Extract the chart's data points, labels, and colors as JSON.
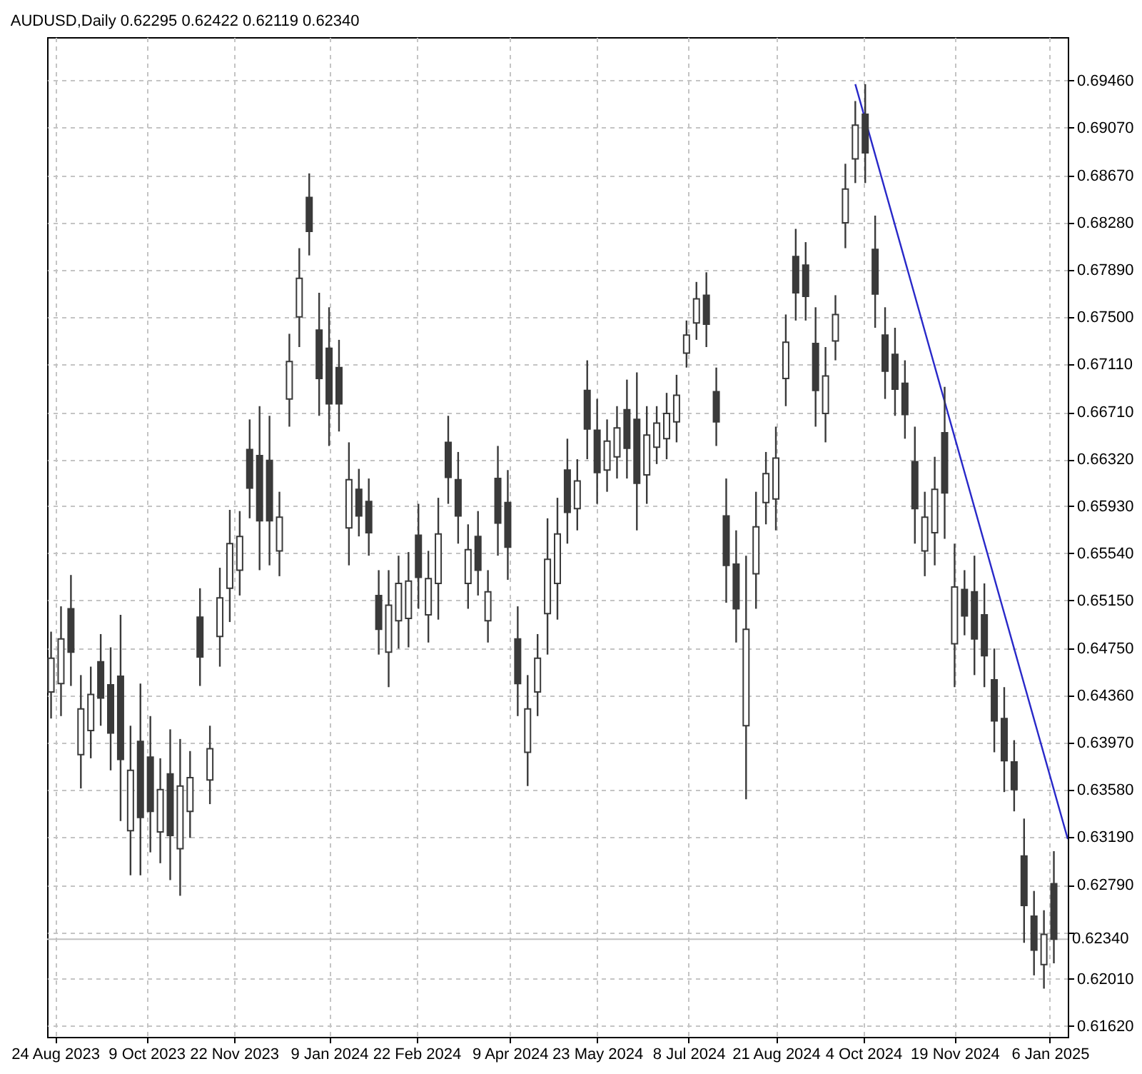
{
  "chart_data": {
    "type": "candlestick",
    "title": "AUDUSD,Daily  0.62295 0.62422 0.62119 0.62340",
    "grid": true,
    "xlim": [
      "2023-08-20",
      "2025-01-15"
    ],
    "xticks": [
      {
        "value": "2023-08-24",
        "label": "24 Aug 2023"
      },
      {
        "value": "2023-10-09",
        "label": "9 Oct 2023"
      },
      {
        "value": "2023-11-22",
        "label": "22 Nov 2023"
      },
      {
        "value": "2024-01-09",
        "label": "9 Jan 2024"
      },
      {
        "value": "2024-02-22",
        "label": "22 Feb 2024"
      },
      {
        "value": "2024-04-09",
        "label": "9 Apr 2024"
      },
      {
        "value": "2024-05-23",
        "label": "23 May 2024"
      },
      {
        "value": "2024-07-08",
        "label": "8 Jul 2024"
      },
      {
        "value": "2024-08-21",
        "label": "21 Aug 2024"
      },
      {
        "value": "2024-10-04",
        "label": "4 Oct 2024"
      },
      {
        "value": "2024-11-19",
        "label": "19 Nov 2024"
      },
      {
        "value": "2025-01-06",
        "label": "6 Jan 2025"
      }
    ],
    "ylim": [
      0.6153,
      0.6982
    ],
    "yticks": [
      {
        "value": 0.6162,
        "label": "0.61620"
      },
      {
        "value": 0.6201,
        "label": "0.62010"
      },
      {
        "value": 0.624,
        "label": null
      },
      {
        "value": 0.6279,
        "label": "0.62790"
      },
      {
        "value": 0.6319,
        "label": "0.63190"
      },
      {
        "value": 0.6358,
        "label": "0.63580"
      },
      {
        "value": 0.6397,
        "label": "0.63970"
      },
      {
        "value": 0.6436,
        "label": "0.64360"
      },
      {
        "value": 0.6475,
        "label": "0.64750"
      },
      {
        "value": 0.6515,
        "label": "0.65150"
      },
      {
        "value": 0.6554,
        "label": "0.65540"
      },
      {
        "value": 0.6593,
        "label": "0.65930"
      },
      {
        "value": 0.6632,
        "label": "0.66320"
      },
      {
        "value": 0.6671,
        "label": "0.66710"
      },
      {
        "value": 0.6711,
        "label": "0.67110"
      },
      {
        "value": 0.675,
        "label": "0.67500"
      },
      {
        "value": 0.6789,
        "label": "0.67890"
      },
      {
        "value": 0.6828,
        "label": "0.68280"
      },
      {
        "value": 0.6867,
        "label": "0.68670"
      },
      {
        "value": 0.6907,
        "label": "0.69070"
      },
      {
        "value": 0.6946,
        "label": "0.69460"
      }
    ],
    "ref_lines": [
      {
        "axis": "y",
        "value": 0.6234,
        "label": "0.62340",
        "color": "#c0c0c0"
      }
    ],
    "series": [
      {
        "type": "line",
        "color": "#2828c8",
        "x": [
          "2024-09-30",
          "2025-01-15"
        ],
        "values": [
          0.6943,
          0.6317
        ]
      },
      {
        "color": "#3a3a3a",
        "x": [
          "2023-08-22",
          "2023-08-27",
          "2023-09-01",
          "2023-09-06",
          "2023-09-11",
          "2023-09-16",
          "2023-09-21",
          "2023-09-26",
          "2023-10-01",
          "2023-10-06",
          "2023-10-11",
          "2023-10-16",
          "2023-10-21",
          "2023-10-26",
          "2023-10-31",
          "2023-11-05",
          "2023-11-10",
          "2023-11-15",
          "2023-11-20",
          "2023-11-25",
          "2023-11-30",
          "2023-12-05",
          "2023-12-10",
          "2023-12-15",
          "2023-12-20",
          "2023-12-25",
          "2023-12-30",
          "2024-01-04",
          "2024-01-09",
          "2024-01-14",
          "2024-01-19",
          "2024-01-24",
          "2024-01-29",
          "2024-02-03",
          "2024-02-08",
          "2024-02-13",
          "2024-02-18",
          "2024-02-23",
          "2024-02-28",
          "2024-03-04",
          "2024-03-09",
          "2024-03-14",
          "2024-03-19",
          "2024-03-24",
          "2024-03-29",
          "2024-04-03",
          "2024-04-08",
          "2024-04-13",
          "2024-04-18",
          "2024-04-23",
          "2024-04-28",
          "2024-05-03",
          "2024-05-08",
          "2024-05-13",
          "2024-05-18",
          "2024-05-23",
          "2024-05-28",
          "2024-06-02",
          "2024-06-07",
          "2024-06-12",
          "2024-06-17",
          "2024-06-22",
          "2024-06-27",
          "2024-07-02",
          "2024-07-07",
          "2024-07-12",
          "2024-07-17",
          "2024-07-22",
          "2024-07-27",
          "2024-08-01",
          "2024-08-06",
          "2024-08-11",
          "2024-08-16",
          "2024-08-21",
          "2024-08-26",
          "2024-08-31",
          "2024-09-05",
          "2024-09-10",
          "2024-09-15",
          "2024-09-20",
          "2024-09-25",
          "2024-09-30",
          "2024-10-05",
          "2024-10-10",
          "2024-10-15",
          "2024-10-20",
          "2024-10-25",
          "2024-10-30",
          "2024-11-04",
          "2024-11-09",
          "2024-11-14",
          "2024-11-19",
          "2024-11-24",
          "2024-11-29",
          "2024-12-04",
          "2024-12-09",
          "2024-12-14",
          "2024-12-19",
          "2024-12-24",
          "2024-12-29",
          "2025-01-03",
          "2025-01-08"
        ],
        "ohlc": [
          [
            0.6439,
            0.6489,
            0.6417,
            0.6467
          ],
          [
            0.6446,
            0.651,
            0.6419,
            0.6483
          ],
          [
            0.6508,
            0.6536,
            0.6444,
            0.6472
          ],
          [
            0.6387,
            0.6453,
            0.6359,
            0.6425
          ],
          [
            0.6407,
            0.646,
            0.6384,
            0.6437
          ],
          [
            0.6464,
            0.6487,
            0.6411,
            0.6434
          ],
          [
            0.6445,
            0.6476,
            0.6374,
            0.6405
          ],
          [
            0.6452,
            0.6503,
            0.6332,
            0.6383
          ],
          [
            0.6324,
            0.6411,
            0.6287,
            0.6374
          ],
          [
            0.6398,
            0.6446,
            0.6287,
            0.6335
          ],
          [
            0.6385,
            0.6419,
            0.6306,
            0.634
          ],
          [
            0.6323,
            0.6384,
            0.6297,
            0.6358
          ],
          [
            0.6371,
            0.6408,
            0.6283,
            0.632
          ],
          [
            0.6309,
            0.64,
            0.627,
            0.6361
          ],
          [
            0.634,
            0.639,
            0.6318,
            0.6368
          ],
          [
            0.6501,
            0.6525,
            0.6444,
            0.6468
          ],
          [
            0.6366,
            0.6411,
            0.6346,
            0.6392
          ],
          [
            0.6485,
            0.6542,
            0.646,
            0.6517
          ],
          [
            0.6525,
            0.659,
            0.6497,
            0.6562
          ],
          [
            0.654,
            0.6589,
            0.6519,
            0.6568
          ],
          [
            0.664,
            0.6665,
            0.6583,
            0.6608
          ],
          [
            0.6635,
            0.6676,
            0.654,
            0.6581
          ],
          [
            0.6631,
            0.6668,
            0.6544,
            0.6581
          ],
          [
            0.6556,
            0.6605,
            0.6535,
            0.6584
          ],
          [
            0.6682,
            0.6736,
            0.6659,
            0.6713
          ],
          [
            0.675,
            0.6807,
            0.6725,
            0.6782
          ],
          [
            0.6849,
            0.6869,
            0.6801,
            0.6821
          ],
          [
            0.6739,
            0.677,
            0.6668,
            0.6699
          ],
          [
            0.6724,
            0.6758,
            0.6643,
            0.6678
          ],
          [
            0.6708,
            0.6731,
            0.6655,
            0.6678
          ],
          [
            0.6575,
            0.6646,
            0.6544,
            0.6615
          ],
          [
            0.6607,
            0.6624,
            0.6568,
            0.6585
          ],
          [
            0.6597,
            0.6616,
            0.6552,
            0.6571
          ],
          [
            0.6519,
            0.654,
            0.647,
            0.6491
          ],
          [
            0.6472,
            0.654,
            0.6443,
            0.6511
          ],
          [
            0.6498,
            0.6552,
            0.6475,
            0.6529
          ],
          [
            0.65,
            0.6555,
            0.6476,
            0.6531
          ],
          [
            0.6569,
            0.6595,
            0.6508,
            0.6534
          ],
          [
            0.6503,
            0.6556,
            0.648,
            0.6533
          ],
          [
            0.6529,
            0.66,
            0.6499,
            0.657
          ],
          [
            0.6646,
            0.6668,
            0.6595,
            0.6617
          ],
          [
            0.6615,
            0.6638,
            0.6562,
            0.6585
          ],
          [
            0.6529,
            0.6578,
            0.6508,
            0.6557
          ],
          [
            0.6568,
            0.6589,
            0.6519,
            0.654
          ],
          [
            0.6498,
            0.654,
            0.648,
            0.6522
          ],
          [
            0.6616,
            0.6643,
            0.6552,
            0.6579
          ],
          [
            0.6596,
            0.6623,
            0.6532,
            0.6559
          ],
          [
            0.6483,
            0.651,
            0.6419,
            0.6446
          ],
          [
            0.6389,
            0.6453,
            0.6361,
            0.6425
          ],
          [
            0.6439,
            0.6487,
            0.6419,
            0.6467
          ],
          [
            0.6504,
            0.6583,
            0.647,
            0.6549
          ],
          [
            0.6529,
            0.66,
            0.6499,
            0.657
          ],
          [
            0.6623,
            0.6649,
            0.6562,
            0.6588
          ],
          [
            0.6591,
            0.6632,
            0.6573,
            0.6614
          ],
          [
            0.6689,
            0.6714,
            0.6632,
            0.6657
          ],
          [
            0.6656,
            0.6682,
            0.6595,
            0.6621
          ],
          [
            0.6623,
            0.6665,
            0.6605,
            0.6647
          ],
          [
            0.6634,
            0.6676,
            0.6616,
            0.6658
          ],
          [
            0.6673,
            0.6698,
            0.6616,
            0.6641
          ],
          [
            0.6665,
            0.6704,
            0.6573,
            0.6612
          ],
          [
            0.6619,
            0.6676,
            0.6595,
            0.6652
          ],
          [
            0.6642,
            0.6676,
            0.6628,
            0.6662
          ],
          [
            0.6649,
            0.6687,
            0.6632,
            0.667
          ],
          [
            0.6663,
            0.6702,
            0.6646,
            0.6685
          ],
          [
            0.672,
            0.6747,
            0.6708,
            0.6735
          ],
          [
            0.6745,
            0.6779,
            0.6731,
            0.6765
          ],
          [
            0.6768,
            0.6787,
            0.6725,
            0.6744
          ],
          [
            0.6688,
            0.6708,
            0.6643,
            0.6663
          ],
          [
            0.6585,
            0.6616,
            0.6513,
            0.6544
          ],
          [
            0.6545,
            0.6573,
            0.648,
            0.6508
          ],
          [
            0.6411,
            0.6552,
            0.635,
            0.6491
          ],
          [
            0.6537,
            0.6605,
            0.6508,
            0.6576
          ],
          [
            0.6596,
            0.6638,
            0.6578,
            0.662
          ],
          [
            0.6599,
            0.6659,
            0.6573,
            0.6633
          ],
          [
            0.6699,
            0.6752,
            0.6676,
            0.6729
          ],
          [
            0.68,
            0.6823,
            0.6747,
            0.677
          ],
          [
            0.6793,
            0.6812,
            0.6747,
            0.6767
          ],
          [
            0.6728,
            0.6758,
            0.6659,
            0.6689
          ],
          [
            0.667,
            0.6725,
            0.6646,
            0.6701
          ],
          [
            0.673,
            0.6768,
            0.6714,
            0.6752
          ],
          [
            0.6828,
            0.6877,
            0.6807,
            0.6856
          ],
          [
            0.6881,
            0.6929,
            0.6861,
            0.6909
          ],
          [
            0.6918,
            0.6943,
            0.6861,
            0.6886
          ],
          [
            0.6806,
            0.6834,
            0.6741,
            0.6769
          ],
          [
            0.6735,
            0.6758,
            0.6682,
            0.6705
          ],
          [
            0.6719,
            0.6741,
            0.6668,
            0.669
          ],
          [
            0.6695,
            0.6714,
            0.6649,
            0.6669
          ],
          [
            0.663,
            0.6659,
            0.6562,
            0.6591
          ],
          [
            0.6556,
            0.6605,
            0.6535,
            0.6584
          ],
          [
            0.6571,
            0.6634,
            0.6544,
            0.6607
          ],
          [
            0.6654,
            0.6692,
            0.6566,
            0.6604
          ],
          [
            0.6479,
            0.6562,
            0.6443,
            0.6526
          ],
          [
            0.6524,
            0.654,
            0.6486,
            0.6502
          ],
          [
            0.6522,
            0.6552,
            0.6453,
            0.6483
          ],
          [
            0.6503,
            0.6529,
            0.6443,
            0.6469
          ],
          [
            0.6449,
            0.6475,
            0.6389,
            0.6415
          ],
          [
            0.6417,
            0.6443,
            0.6356,
            0.6382
          ],
          [
            0.6381,
            0.6399,
            0.634,
            0.6358
          ],
          [
            0.6303,
            0.6334,
            0.6231,
            0.6262
          ],
          [
            0.6253,
            0.6274,
            0.6204,
            0.6225
          ],
          [
            0.6213,
            0.6258,
            0.6193,
            0.6238
          ],
          [
            0.628,
            0.6307,
            0.6214,
            0.6234
          ]
        ]
      }
    ]
  }
}
